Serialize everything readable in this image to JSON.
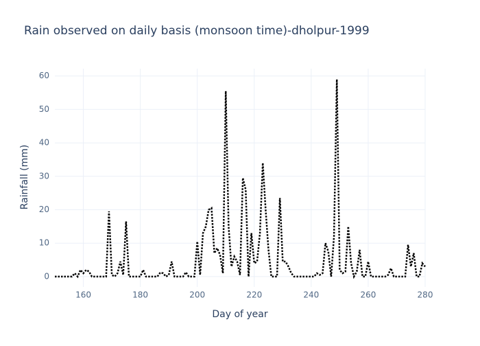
{
  "chart_data": {
    "type": "line",
    "title": "Rain observed on daily basis (monsoon time)-dholpur-1999",
    "x_label": "Day of year",
    "y_label": "Rainfall (mm)",
    "x": [
      150,
      151,
      152,
      153,
      154,
      155,
      156,
      157,
      158,
      159,
      160,
      161,
      162,
      163,
      164,
      165,
      166,
      167,
      168,
      169,
      170,
      171,
      172,
      173,
      174,
      175,
      176,
      177,
      178,
      179,
      180,
      181,
      182,
      183,
      184,
      185,
      186,
      187,
      188,
      189,
      190,
      191,
      192,
      193,
      194,
      195,
      196,
      197,
      198,
      199,
      200,
      201,
      202,
      203,
      204,
      205,
      206,
      207,
      208,
      209,
      210,
      211,
      212,
      213,
      214,
      215,
      216,
      217,
      218,
      219,
      220,
      221,
      222,
      223,
      224,
      225,
      226,
      227,
      228,
      229,
      230,
      231,
      232,
      233,
      234,
      235,
      236,
      237,
      238,
      239,
      240,
      241,
      242,
      243,
      244,
      245,
      246,
      247,
      248,
      249,
      250,
      251,
      252,
      253,
      254,
      255,
      256,
      257,
      258,
      259,
      260,
      261,
      262,
      263,
      264,
      265,
      266,
      267,
      268,
      269,
      270,
      271,
      272,
      273,
      274,
      275,
      276,
      277,
      278,
      279,
      280
    ],
    "series": [
      {
        "color": "#000000",
        "values": [
          0,
          0,
          0,
          0,
          0,
          0,
          0,
          1,
          0,
          2,
          1,
          2,
          1.5,
          0,
          0,
          0,
          0,
          0,
          0,
          19.5,
          0.5,
          0,
          1,
          4.5,
          0.5,
          16.5,
          0,
          0,
          0,
          0,
          0,
          2,
          0,
          0,
          0,
          0,
          0,
          1.2,
          1,
          0,
          0.5,
          4.5,
          0,
          0,
          0,
          0,
          1.3,
          0,
          0,
          0,
          10.5,
          0.5,
          13,
          15,
          20,
          20.5,
          7,
          8.5,
          6.5,
          1,
          55.5,
          15,
          3,
          6,
          4.5,
          0.5,
          29.5,
          26,
          0,
          13,
          4,
          4.5,
          13,
          34,
          20,
          8,
          0,
          0,
          0,
          23.5,
          4.5,
          4.5,
          3,
          1,
          0,
          0,
          0,
          0,
          0,
          0,
          0,
          0,
          1,
          0.5,
          1,
          10,
          7.5,
          0,
          12,
          59,
          2,
          1,
          1.5,
          15,
          4,
          0,
          1.5,
          8,
          0,
          0,
          4.5,
          0,
          0,
          0,
          0,
          0,
          0,
          0.5,
          2.5,
          0,
          0,
          0,
          0,
          0,
          9.5,
          3,
          7,
          0,
          0,
          4,
          3
        ]
      }
    ],
    "xlim": [
      150,
      280
    ],
    "ylim": [
      -3.1,
      62.2
    ],
    "xticks": [
      160,
      180,
      200,
      220,
      240,
      260,
      280
    ],
    "yticks": [
      0,
      10,
      20,
      30,
      40,
      50,
      60
    ],
    "grid": true,
    "dash": true
  }
}
